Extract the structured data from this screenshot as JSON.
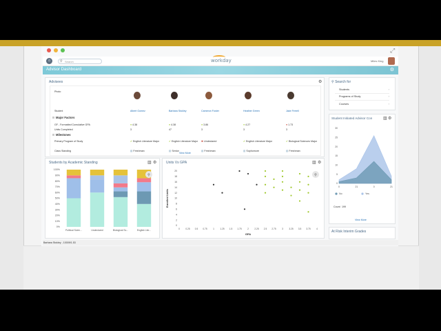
{
  "app": {
    "search_placeholder": "Search",
    "logo_text": "workday",
    "user_name": "Miles King"
  },
  "header": {
    "title": "Advisor Dashboard"
  },
  "advisees": {
    "title": "Advisees",
    "row_labels": {
      "photo": "Photo",
      "student": "Student"
    },
    "students": [
      "Albert Gomez",
      "Barbara Stokley",
      "Cameron Foster",
      "Heather Green",
      "Jake Ferrell"
    ],
    "major_factors_title": "Major Factors",
    "gpa_label": "GF - Formatted Cumulative GPA",
    "gpa_values": [
      "4.38",
      "4.38",
      "3.86",
      "4.27",
      "1.73"
    ],
    "units_label": "Units Completed",
    "units_values": [
      "3",
      "47",
      "3",
      "3",
      "3"
    ],
    "milestones_title": "Milestones",
    "program_label": "Primary Program of Study",
    "programs": [
      "English Literature Major",
      "English Literature Major",
      "Undeclared",
      "English Literature Major",
      "Biological Sciences Major"
    ],
    "class_label": "Class Standing",
    "classes": [
      "Freshman",
      "Senior",
      "Freshman",
      "Sophomore",
      "Freshman"
    ],
    "view_more": "View More"
  },
  "standing_chart": {
    "title": "Students by Academic Standing",
    "chart_data": {
      "type": "bar",
      "stacked": true,
      "categories": [
        "Political Scien...",
        "Undeclared",
        "Biological Sc...",
        "English Lite..."
      ],
      "y_ticks": [
        "100%",
        "90%",
        "80%",
        "70%",
        "60%",
        "50%",
        "40%",
        "30%",
        "20%",
        "10%",
        "0%"
      ],
      "series": [
        {
          "color": "#b2ecdf",
          "values": [
            50,
            60,
            52,
            40
          ]
        },
        {
          "color": "#6d99b3",
          "values": [
            0,
            0,
            10,
            22
          ]
        },
        {
          "color": "#9fbfe9",
          "values": [
            35,
            23,
            7,
            16
          ]
        },
        {
          "color": "#f27a8a",
          "values": [
            5,
            0,
            7,
            7
          ]
        },
        {
          "color": "#a9c3e8",
          "values": [
            0,
            7,
            14,
            0
          ]
        },
        {
          "color": "#e5c23a",
          "values": [
            10,
            10,
            10,
            15
          ]
        }
      ]
    }
  },
  "units_gpa_chart": {
    "title": "Units Vs GPA",
    "chart_data": {
      "type": "scatter",
      "xlabel": "GPA",
      "ylabel": "Enrolled Units",
      "x_ticks": [
        "0",
        "0.25",
        "0.5",
        "0.75",
        "1",
        "1.25",
        "1.5",
        "1.75",
        "2",
        "2.25",
        "2.5",
        "2.75",
        "3",
        "3.25",
        "3.5",
        "3.75",
        "4"
      ],
      "y_ticks": [
        "20",
        "18",
        "16",
        "14",
        "12",
        "10",
        "8",
        "6",
        "4",
        "2",
        "0"
      ],
      "points": [
        {
          "x": 1.0,
          "y": 15,
          "color": "#333"
        },
        {
          "x": 1.25,
          "y": 12,
          "color": "#333"
        },
        {
          "x": 1.75,
          "y": 20,
          "color": "#333"
        },
        {
          "x": 2.0,
          "y": 19,
          "color": "#333"
        },
        {
          "x": 2.25,
          "y": 15,
          "color": "#333"
        },
        {
          "x": 1.9,
          "y": 6,
          "color": "#333"
        },
        {
          "x": 2.5,
          "y": 20,
          "color": "#9fc82b"
        },
        {
          "x": 2.5,
          "y": 18,
          "color": "#9fc82b"
        },
        {
          "x": 2.5,
          "y": 15,
          "color": "#9fc82b"
        },
        {
          "x": 2.5,
          "y": 12,
          "color": "#9fc82b"
        },
        {
          "x": 2.75,
          "y": 17,
          "color": "#9fc82b"
        },
        {
          "x": 2.75,
          "y": 14,
          "color": "#9fc82b"
        },
        {
          "x": 3.0,
          "y": 20,
          "color": "#9fc82b"
        },
        {
          "x": 3.0,
          "y": 18,
          "color": "#9fc82b"
        },
        {
          "x": 3.0,
          "y": 16,
          "color": "#9fc82b"
        },
        {
          "x": 3.0,
          "y": 13,
          "color": "#9fc82b"
        },
        {
          "x": 3.25,
          "y": 14,
          "color": "#9fc82b"
        },
        {
          "x": 3.25,
          "y": 11,
          "color": "#9fc82b"
        },
        {
          "x": 3.5,
          "y": 19,
          "color": "#9fc82b"
        },
        {
          "x": 3.5,
          "y": 16,
          "color": "#9fc82b"
        },
        {
          "x": 3.5,
          "y": 13,
          "color": "#9fc82b"
        },
        {
          "x": 3.5,
          "y": 9,
          "color": "#9fc82b"
        },
        {
          "x": 3.75,
          "y": 18,
          "color": "#9fc82b"
        },
        {
          "x": 3.75,
          "y": 15,
          "color": "#9fc82b"
        },
        {
          "x": 3.75,
          "y": 12,
          "color": "#9fc82b"
        },
        {
          "x": 3.75,
          "y": 5,
          "color": "#9fc82b"
        }
      ]
    }
  },
  "search_for": {
    "title": "Search for",
    "items": [
      "Students",
      "Programs of Study",
      "Courses"
    ]
  },
  "advisor_chart": {
    "title": "Student Initiated Advisor Con",
    "chart_data": {
      "type": "area",
      "categories": [
        "0",
        "21",
        "0",
        "21"
      ],
      "y_ticks": [
        "30",
        "25",
        "20",
        "15",
        "10",
        "5",
        "0"
      ],
      "series": [
        {
          "name": "Yes",
          "color": "#a9c3e8",
          "values": [
            2,
            8,
            26,
            4
          ]
        },
        {
          "name": "No",
          "color": "#6d99b3",
          "values": [
            1,
            3,
            12,
            2
          ]
        }
      ],
      "legend": [
        "No",
        "Yes"
      ]
    },
    "count_label": "Count",
    "count_value": "199",
    "view_more": "View More"
  },
  "at_risk": {
    "title": "At Risk Interim Grades"
  },
  "status_bar": {
    "text": "Barbara Stokley - 10009/1.53"
  }
}
